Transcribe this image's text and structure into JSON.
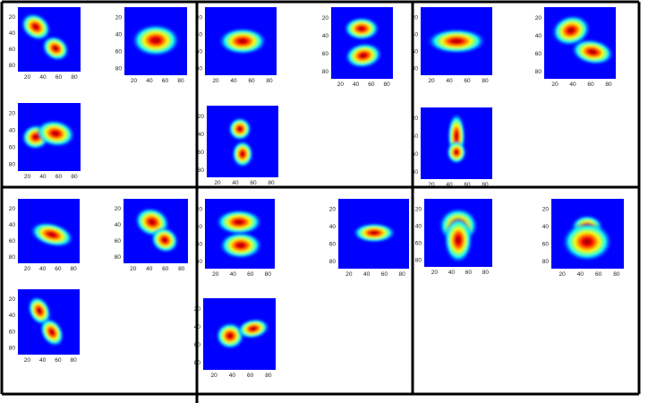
{
  "figure": {
    "colormap": [
      "#00007f",
      "#0000ff",
      "#00ffff",
      "#ffff00",
      "#ff0000",
      "#7f0000"
    ],
    "grid_line_color": "#000000",
    "panels": [
      {
        "id": "p1",
        "ticks_left": [
          "20",
          "40",
          "60",
          "80"
        ],
        "ticks_bottom": [
          "20",
          "40",
          "60",
          "80"
        ]
      },
      {
        "id": "p2",
        "ticks_left": [
          "20",
          "40",
          "60",
          "80"
        ],
        "ticks_bottom": [
          "20",
          "40",
          "60",
          "80"
        ]
      },
      {
        "id": "p3",
        "ticks_left": [
          "20",
          "40",
          "60",
          "80"
        ],
        "ticks_bottom": [
          "20",
          "40",
          "60",
          "80"
        ]
      },
      {
        "id": "p4",
        "ticks_left": [
          "20",
          "40",
          "60",
          "80"
        ],
        "ticks_bottom": [
          "20",
          "40",
          "60",
          "80"
        ]
      },
      {
        "id": "p5",
        "ticks_left": [
          "20",
          "40",
          "60",
          "80"
        ],
        "ticks_bottom": [
          "20",
          "40",
          "60",
          "80"
        ]
      },
      {
        "id": "p6",
        "ticks_left": [
          "20",
          "40",
          "60",
          "80"
        ],
        "ticks_bottom": [
          "20",
          "40",
          "60",
          "80"
        ]
      },
      {
        "id": "p7",
        "ticks_left": [
          "20",
          "40",
          "60",
          "80"
        ],
        "ticks_bottom": [
          "20",
          "40",
          "60",
          "80"
        ]
      },
      {
        "id": "p8",
        "ticks_left": [
          "20",
          "40",
          "60",
          "80"
        ],
        "ticks_bottom": [
          "20",
          "40",
          "60",
          "80"
        ]
      },
      {
        "id": "p9",
        "ticks_left": [
          "20",
          "40",
          "60",
          "80"
        ],
        "ticks_bottom": [
          "20",
          "40",
          "60",
          "80"
        ]
      },
      {
        "id": "p10",
        "ticks_left": [
          "20",
          "40",
          "60",
          "80"
        ],
        "ticks_bottom": [
          "20",
          "40",
          "60",
          "80"
        ]
      },
      {
        "id": "p11",
        "ticks_left": [
          "20",
          "40",
          "60",
          "80"
        ],
        "ticks_bottom": [
          "20",
          "40",
          "60",
          "80"
        ]
      },
      {
        "id": "p12",
        "ticks_left": [
          "20",
          "40",
          "60",
          "80"
        ],
        "ticks_bottom": [
          "20",
          "40",
          "60",
          "80"
        ]
      },
      {
        "id": "p13",
        "ticks_left": [
          "20",
          "40",
          "60",
          "80"
        ],
        "ticks_bottom": [
          "20",
          "40",
          "60",
          "80"
        ]
      },
      {
        "id": "p14",
        "ticks_left": [
          "20",
          "40",
          "60",
          "80"
        ],
        "ticks_bottom": [
          "20",
          "40",
          "60",
          "80"
        ]
      },
      {
        "id": "p15",
        "ticks_left": [
          "20",
          "40",
          "60",
          "80"
        ],
        "ticks_bottom": [
          "20",
          "40",
          "60",
          "80"
        ]
      },
      {
        "id": "p16",
        "ticks_left": [
          "20",
          "40",
          "60",
          "80"
        ],
        "ticks_bottom": [
          "20",
          "40",
          "60",
          "80"
        ]
      },
      {
        "id": "p17",
        "ticks_left": [
          "20",
          "40",
          "60",
          "80"
        ],
        "ticks_bottom": [
          "20",
          "40",
          "60",
          "80"
        ]
      }
    ]
  }
}
